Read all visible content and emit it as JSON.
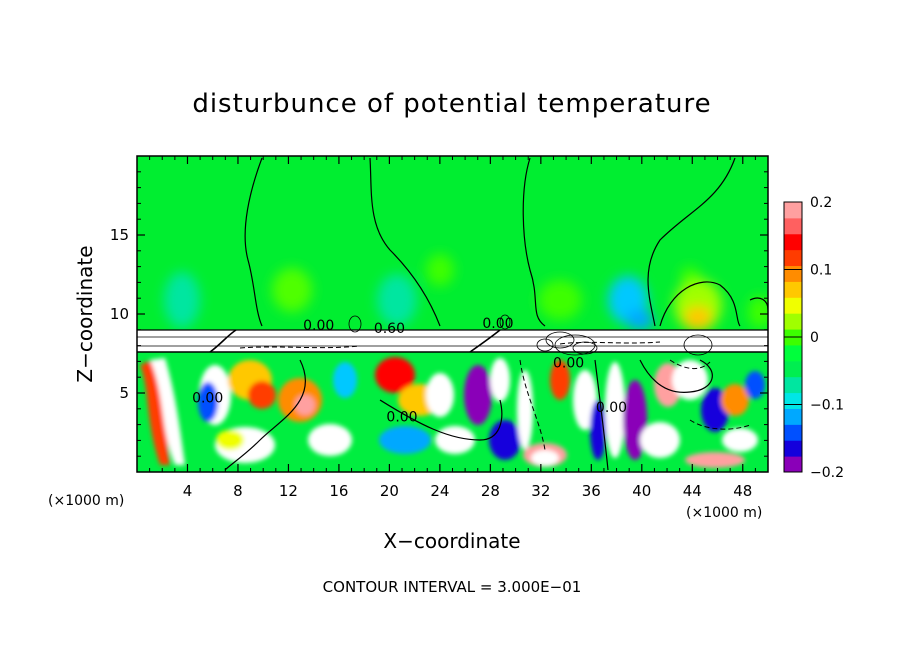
{
  "chart_data": {
    "type": "heatmap",
    "title": "disturbunce of potential temperature",
    "xlabel": "X−coordinate",
    "ylabel": "Z−coordinate",
    "x_unit": "(×1000 m)",
    "x_unit_right": "(×1000 m)",
    "xlim": [
      0,
      50
    ],
    "ylim": [
      0,
      20
    ],
    "x_ticks": [
      4,
      8,
      12,
      16,
      20,
      24,
      28,
      32,
      36,
      40,
      44,
      48
    ],
    "x_tick_labels": [
      "4",
      "8",
      "12",
      "16",
      "20",
      "24",
      "28",
      "32",
      "36",
      "40",
      "44",
      "48"
    ],
    "y_ticks": [
      5,
      10,
      15
    ],
    "y_tick_labels": [
      "5",
      "10",
      "15"
    ],
    "colorbar": {
      "range": [
        -0.2,
        0.2
      ],
      "ticks": [
        0.2,
        0.1,
        0,
        -0.1,
        -0.2
      ],
      "tick_labels": [
        "0.2",
        "0.1",
        "0",
        "−0.1",
        "−0.2"
      ],
      "colors": [
        "#8a00b8",
        "#1400dc",
        "#0050ff",
        "#00a8ff",
        "#00e6e6",
        "#00e6a0",
        "#00ee50",
        "#00ff3c",
        "#3cff00",
        "#a0ff00",
        "#f0ff00",
        "#ffc800",
        "#ff8c00",
        "#ff3c00",
        "#ff0000",
        "#ff6060",
        "#ffa0a0"
      ]
    },
    "contour_labels": [
      {
        "text": "0.00",
        "x": 14.4,
        "y": 9.0
      },
      {
        "text": "0.60",
        "x": 20.0,
        "y": 8.8
      },
      {
        "text": "0.00",
        "x": 28.6,
        "y": 9.1
      },
      {
        "text": "0.00",
        "x": 5.6,
        "y": 4.4
      },
      {
        "text": "0.00",
        "x": 21.0,
        "y": 3.2
      },
      {
        "text": "0.00",
        "x": 37.6,
        "y": 3.8
      },
      {
        "text": "0.00",
        "x": 34.2,
        "y": 6.6
      }
    ],
    "contour_interval_text": "CONTOUR INTERVAL = 3.000E−01"
  }
}
